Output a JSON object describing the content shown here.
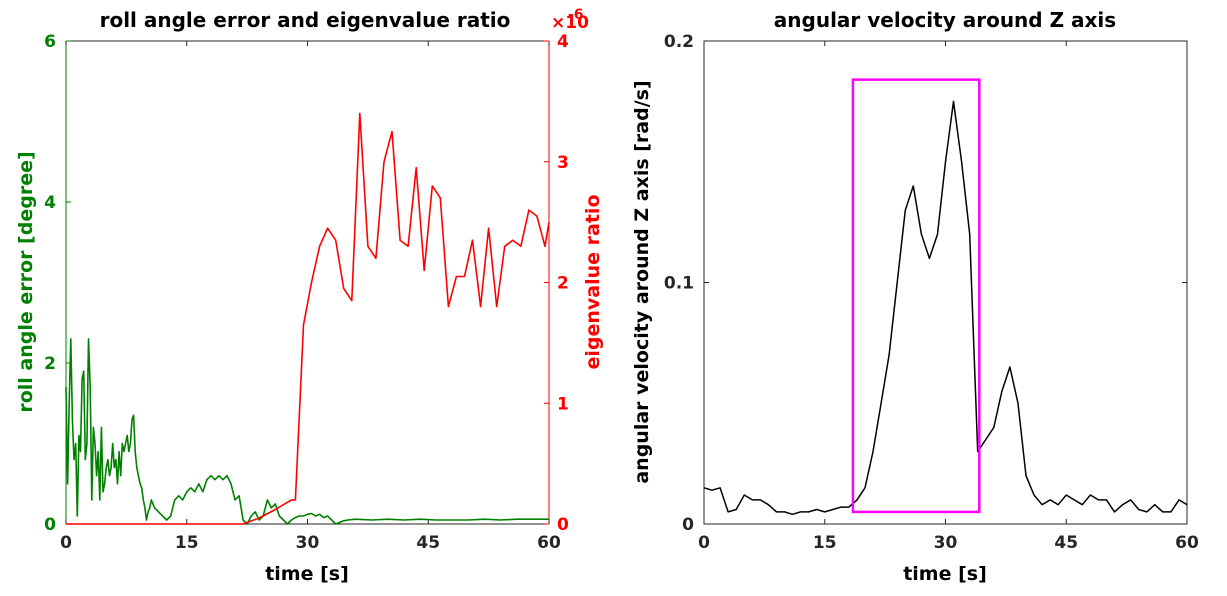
{
  "chart_data": [
    {
      "type": "line",
      "title": "roll angle error and eigenvalue ratio",
      "xlabel": "time [s]",
      "ylabel_left": "roll angle error [degree]",
      "ylabel_right": "eigenvalue ratio",
      "right_axis_multiplier": "×10",
      "right_axis_exponent": "-6",
      "xlim": [
        0,
        60
      ],
      "ylim_left": [
        0,
        6
      ],
      "ylim_right": [
        0,
        4
      ],
      "x_ticks": [
        "0",
        "15",
        "30",
        "45",
        "60"
      ],
      "y_left_ticks": [
        "0",
        "2",
        "4",
        "6"
      ],
      "y_right_ticks": [
        "0",
        "1",
        "2",
        "3",
        "4"
      ],
      "grid": false,
      "colors": {
        "roll": "#008000",
        "eigen": "#ff0000"
      },
      "series": [
        {
          "axis": "left",
          "x": [
            0,
            0.2,
            0.4,
            0.6,
            0.8,
            1.0,
            1.2,
            1.4,
            1.6,
            1.8,
            2.0,
            2.2,
            2.4,
            2.6,
            2.8,
            3.0,
            3.2,
            3.4,
            3.6,
            3.8,
            4.0,
            4.2,
            4.4,
            4.6,
            4.8,
            5.0,
            5.2,
            5.4,
            5.6,
            5.8,
            6.0,
            6.2,
            6.4,
            6.6,
            6.8,
            7.0,
            7.2,
            7.4,
            7.6,
            7.8,
            8.0,
            8.2,
            8.4,
            8.6,
            8.8,
            9.0,
            9.2,
            9.4,
            9.6,
            9.8,
            10.0,
            10.2,
            10.4,
            10.6,
            10.8,
            11.0,
            11.5,
            12.0,
            12.5,
            13.0,
            13.5,
            14.0,
            14.5,
            15.0,
            15.5,
            16.0,
            16.5,
            17.0,
            17.5,
            18.0,
            18.5,
            19.0,
            19.5,
            20.0,
            20.5,
            21.0,
            21.5,
            22.0,
            22.5,
            23.0,
            23.5,
            24.0,
            24.5,
            25.0,
            25.5,
            26.0,
            26.5,
            27.0,
            27.5,
            28.0,
            28.5,
            29.0,
            29.5,
            30.0,
            30.5,
            31.0,
            31.5,
            32.0,
            32.5,
            33.0,
            33.5,
            34.0,
            34.5,
            35.0,
            36,
            38,
            40,
            42,
            44,
            46,
            48,
            50,
            52,
            54,
            56,
            58,
            60
          ],
          "y": [
            1.7,
            0.5,
            1.5,
            2.3,
            1.3,
            0.8,
            1.0,
            0.1,
            1.1,
            0.9,
            1.8,
            1.9,
            0.8,
            1.0,
            2.3,
            1.7,
            0.3,
            1.2,
            1.0,
            0.6,
            0.9,
            0.3,
            1.2,
            0.4,
            0.5,
            0.7,
            0.8,
            0.6,
            0.7,
            1.0,
            0.7,
            0.8,
            0.5,
            0.9,
            0.6,
            1.0,
            0.9,
            1.0,
            1.1,
            0.9,
            1.0,
            1.3,
            1.35,
            0.9,
            0.7,
            0.6,
            0.5,
            0.45,
            0.3,
            0.2,
            0.05,
            0.15,
            0.2,
            0.3,
            0.25,
            0.2,
            0.15,
            0.1,
            0.05,
            0.1,
            0.3,
            0.35,
            0.3,
            0.4,
            0.45,
            0.4,
            0.5,
            0.4,
            0.55,
            0.6,
            0.55,
            0.6,
            0.55,
            0.6,
            0.5,
            0.3,
            0.35,
            0.05,
            0.0,
            0.1,
            0.15,
            0.05,
            0.1,
            0.3,
            0.2,
            0.25,
            0.1,
            0.05,
            0.0,
            0.05,
            0.08,
            0.1,
            0.1,
            0.12,
            0.13,
            0.1,
            0.12,
            0.08,
            0.1,
            0.05,
            0.0,
            0.02,
            0.04,
            0.05,
            0.06,
            0.05,
            0.06,
            0.05,
            0.06,
            0.05,
            0.05,
            0.05,
            0.06,
            0.05,
            0.06,
            0.06,
            0.06
          ]
        },
        {
          "axis": "right",
          "x": [
            0,
            20,
            22,
            24,
            26,
            28,
            28.5,
            29.5,
            30.5,
            31.5,
            32.5,
            33.5,
            34.5,
            35.5,
            36.5,
            37.5,
            38.5,
            39.5,
            40.5,
            41.5,
            42.5,
            43.5,
            44.5,
            45.5,
            46.5,
            47.5,
            48.5,
            49.5,
            50.5,
            51.5,
            52.5,
            53.5,
            54.5,
            55.5,
            56.5,
            57.5,
            58.5,
            59.5,
            60
          ],
          "y": [
            0,
            0,
            0,
            0.05,
            0.12,
            0.2,
            0.2,
            1.65,
            2.0,
            2.3,
            2.45,
            2.35,
            1.95,
            1.85,
            3.4,
            2.3,
            2.2,
            3.0,
            3.25,
            2.35,
            2.3,
            2.95,
            2.1,
            2.8,
            2.7,
            1.8,
            2.05,
            2.05,
            2.35,
            1.8,
            2.45,
            1.8,
            2.3,
            2.35,
            2.3,
            2.6,
            2.55,
            2.3,
            2.5
          ]
        }
      ]
    },
    {
      "type": "line",
      "title": "angular velocity around Z axis",
      "xlabel": "time [s]",
      "ylabel": "angular velocity around Z axis [rad/s]",
      "xlim": [
        0,
        60
      ],
      "ylim": [
        0,
        0.2
      ],
      "x_ticks": [
        "0",
        "15",
        "30",
        "45",
        "60"
      ],
      "y_ticks": [
        "0",
        "0.1",
        "0.2"
      ],
      "grid": false,
      "colors": {
        "signal": "#000000",
        "highlight": "#ff00ff"
      },
      "highlight_box": {
        "x": [
          18.5,
          34.2
        ],
        "y": [
          0.005,
          0.184
        ]
      },
      "series": [
        {
          "x": [
            0,
            1,
            2,
            3,
            4,
            5,
            6,
            7,
            8,
            9,
            10,
            11,
            12,
            13,
            14,
            15,
            16,
            17,
            18,
            19,
            20,
            21,
            22,
            23,
            24,
            25,
            26,
            27,
            28,
            29,
            30,
            31,
            32,
            33,
            34,
            35,
            36,
            37,
            38,
            39,
            40,
            41,
            42,
            43,
            44,
            45,
            46,
            47,
            48,
            49,
            50,
            51,
            52,
            53,
            54,
            55,
            56,
            57,
            58,
            59,
            60
          ],
          "y": [
            0.015,
            0.014,
            0.015,
            0.005,
            0.006,
            0.012,
            0.01,
            0.01,
            0.008,
            0.005,
            0.005,
            0.004,
            0.005,
            0.005,
            0.006,
            0.005,
            0.006,
            0.007,
            0.007,
            0.01,
            0.015,
            0.03,
            0.05,
            0.07,
            0.1,
            0.13,
            0.14,
            0.12,
            0.11,
            0.12,
            0.15,
            0.175,
            0.15,
            0.12,
            0.03,
            0.035,
            0.04,
            0.055,
            0.065,
            0.05,
            0.02,
            0.012,
            0.008,
            0.01,
            0.008,
            0.012,
            0.01,
            0.008,
            0.012,
            0.01,
            0.01,
            0.005,
            0.008,
            0.01,
            0.006,
            0.005,
            0.008,
            0.005,
            0.005,
            0.01,
            0.008
          ]
        }
      ]
    }
  ]
}
